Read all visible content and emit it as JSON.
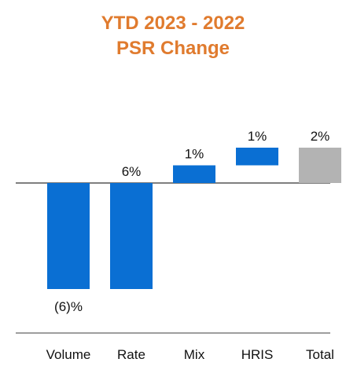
{
  "chart_data": {
    "type": "bar",
    "subtype": "waterfall",
    "title_lines": [
      "YTD 2023 - 2022",
      "PSR Change"
    ],
    "categories": [
      "Volume",
      "Rate",
      "Mix",
      "HRIS",
      "Total"
    ],
    "values": [
      -6,
      6,
      1,
      1,
      2
    ],
    "data_labels": [
      "(6)%",
      "6%",
      "1%",
      "1%",
      "2%"
    ],
    "colors": {
      "title": "#E07B2E",
      "bar": "#0A6FD3",
      "total": "#B3B3B3",
      "axis": "#7F7F7F"
    },
    "xlabel": "",
    "ylabel": "",
    "grid": false,
    "legend": "none"
  }
}
